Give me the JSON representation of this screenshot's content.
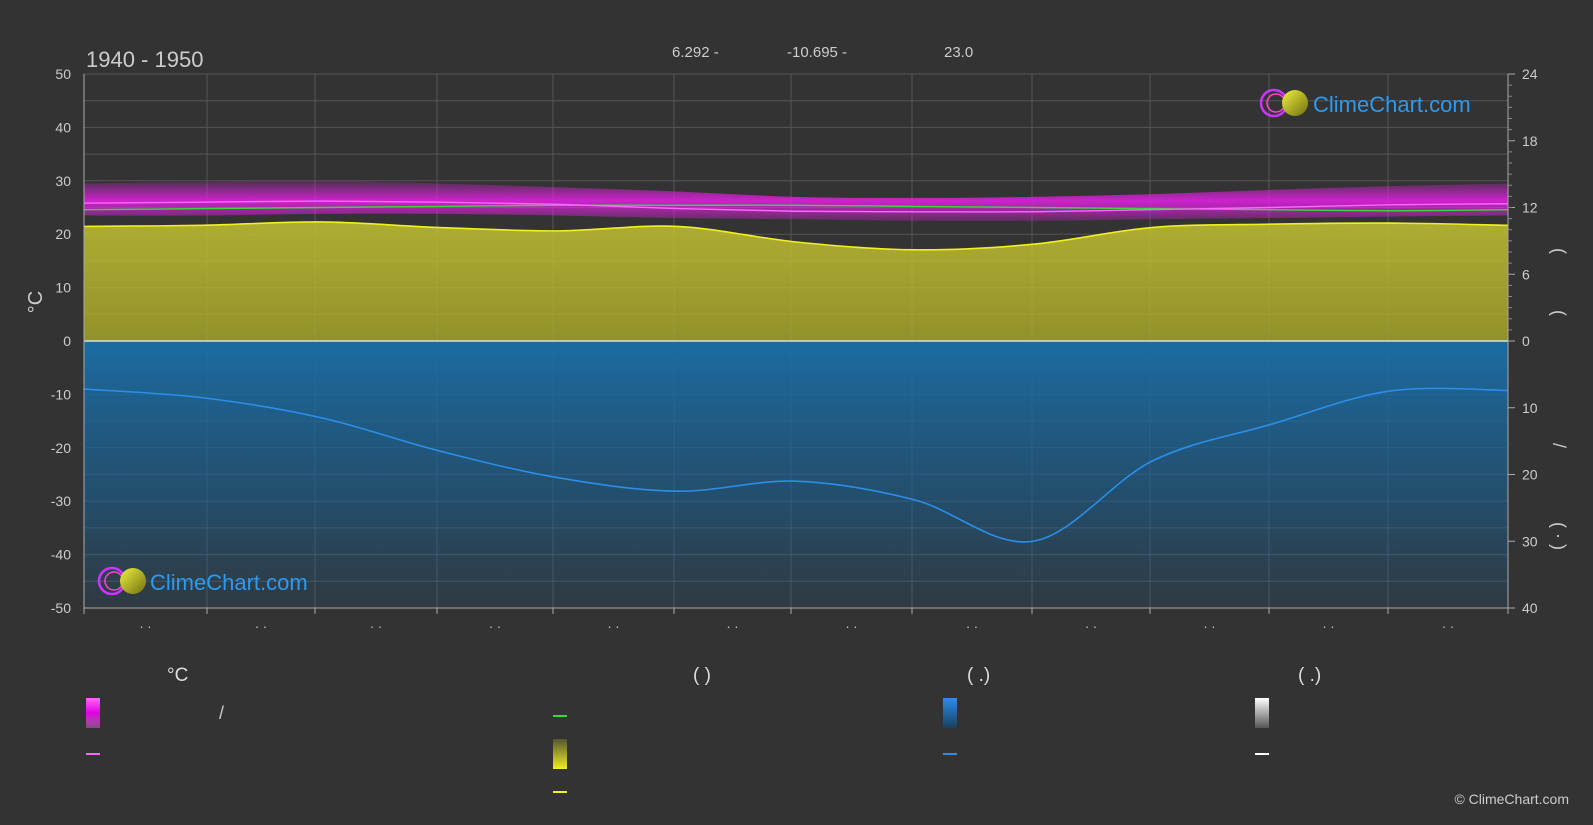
{
  "header": {
    "period": "1940 - 1950",
    "stat_1": "6.292 -",
    "stat_2": "-10.695 -",
    "stat_3": "23.0"
  },
  "logo": {
    "text": "ClimeChart.com"
  },
  "copyright": "© ClimeChart.com",
  "legend": {
    "col1_title": "°C",
    "col2_title": "(           )",
    "col3_title": "(    .)",
    "col4_title": "(    .)",
    "slash": "/"
  },
  "colors": {
    "background": "#333333",
    "temp_band": "#e020e0",
    "temp_line": "#ff66ff",
    "daylight_line": "#33dd33",
    "sunshine_fill": "#b8b82e",
    "sunshine_line": "#f0f020",
    "precip_fill": "#1a6fa8",
    "precip_line": "#2b8ee8",
    "snow_line": "#ffffff",
    "logo_text": "#2b9af0"
  },
  "chart_data": {
    "type": "area",
    "title": "1940 - 1950",
    "ylabel_left": "°C",
    "ylim_left": [
      -50,
      50
    ],
    "yticks_left": [
      50,
      40,
      30,
      20,
      10,
      0,
      -10,
      -20,
      -30,
      -40,
      -50
    ],
    "ylim_right_top": [
      0,
      24
    ],
    "yticks_right_top": [
      24,
      18,
      12,
      6,
      0
    ],
    "ylim_right_bottom": [
      0,
      40
    ],
    "yticks_right_bottom": [
      10,
      20,
      30,
      40
    ],
    "month_labels": [
      "· ·",
      "· ·",
      "· ·",
      "· ·",
      "· ·",
      "· ·",
      "· ·",
      "· ·",
      "· ·",
      "· ·",
      "· ·",
      "· ·"
    ],
    "grid": true,
    "x": [
      0,
      1,
      2,
      3,
      4,
      5,
      6,
      7,
      8,
      9,
      10,
      11,
      12
    ],
    "series": [
      {
        "key": "temp_band_max",
        "values": [
          29.5,
          29.8,
          30.0,
          29.5,
          28.8,
          28.0,
          27.0,
          26.8,
          27.0,
          27.5,
          28.3,
          29.0,
          29.5
        ]
      },
      {
        "key": "temp_band_min",
        "values": [
          23.5,
          23.5,
          23.8,
          23.8,
          23.5,
          23.0,
          22.8,
          22.5,
          22.5,
          22.8,
          23.0,
          23.3,
          23.5
        ]
      },
      {
        "key": "temp_mean",
        "values": [
          25.8,
          26.0,
          26.2,
          26.0,
          25.6,
          24.8,
          24.3,
          24.2,
          24.2,
          24.6,
          25.0,
          25.5,
          25.7
        ]
      },
      {
        "key": "daylight_hours",
        "values": [
          11.8,
          11.9,
          12.0,
          12.1,
          12.2,
          12.2,
          12.2,
          12.1,
          12.0,
          11.9,
          11.8,
          11.7,
          11.8
        ]
      },
      {
        "key": "sunshine_hours",
        "values": [
          10.3,
          10.4,
          10.7,
          10.2,
          9.9,
          10.3,
          8.9,
          8.2,
          8.7,
          10.2,
          10.5,
          10.6,
          10.4
        ]
      },
      {
        "key": "precip_mm",
        "values": [
          7.2,
          8.5,
          11.5,
          16.5,
          20.5,
          22.5,
          21.0,
          23.8,
          30.0,
          18.0,
          12.5,
          7.5,
          7.4
        ]
      }
    ]
  }
}
